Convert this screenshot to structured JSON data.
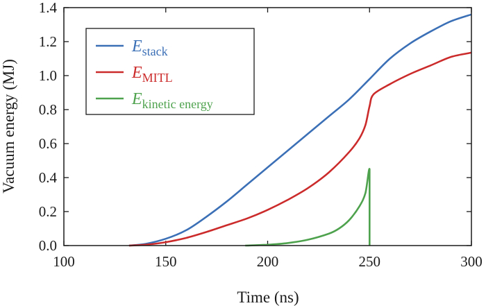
{
  "chart_data": {
    "type": "line",
    "title": "",
    "xlabel": "Time (ns)",
    "ylabel": "Vacuum energy (MJ)",
    "xlim": [
      100,
      300
    ],
    "ylim": [
      0,
      1.4
    ],
    "xticks": [
      "100",
      "150",
      "200",
      "250",
      "300"
    ],
    "yticks": [
      "0.0",
      "0.2",
      "0.4",
      "0.6",
      "0.8",
      "1.0",
      "1.2",
      "1.4"
    ],
    "grid": false,
    "legend_position": "top-left",
    "series": [
      {
        "name": "E",
        "subscript": "stack",
        "color": "#3b6fb6",
        "x": [
          132,
          140,
          150,
          160,
          170,
          180,
          190,
          200,
          210,
          220,
          230,
          240,
          250,
          260,
          270,
          280,
          290,
          300
        ],
        "y": [
          0.0,
          0.01,
          0.04,
          0.09,
          0.17,
          0.26,
          0.36,
          0.46,
          0.56,
          0.66,
          0.76,
          0.86,
          0.98,
          1.1,
          1.19,
          1.26,
          1.32,
          1.36
        ]
      },
      {
        "name": "E",
        "subscript": "MITL",
        "color": "#cc2b2b",
        "x": [
          132,
          140,
          150,
          160,
          170,
          180,
          190,
          200,
          210,
          220,
          230,
          240,
          245,
          248,
          250,
          252,
          260,
          270,
          280,
          290,
          300
        ],
        "y": [
          0.0,
          0.005,
          0.02,
          0.045,
          0.08,
          0.12,
          0.16,
          0.21,
          0.27,
          0.34,
          0.43,
          0.55,
          0.63,
          0.71,
          0.82,
          0.89,
          0.95,
          1.01,
          1.06,
          1.11,
          1.135
        ]
      },
      {
        "name": "E",
        "subscript": "kinetic energy",
        "color": "#4ea24e",
        "x": [
          189,
          200,
          210,
          220,
          230,
          235,
          240,
          245,
          248,
          250,
          250,
          250
        ],
        "y": [
          0.0,
          0.005,
          0.015,
          0.035,
          0.07,
          0.1,
          0.15,
          0.23,
          0.31,
          0.45,
          0.2,
          0.0
        ]
      }
    ]
  }
}
